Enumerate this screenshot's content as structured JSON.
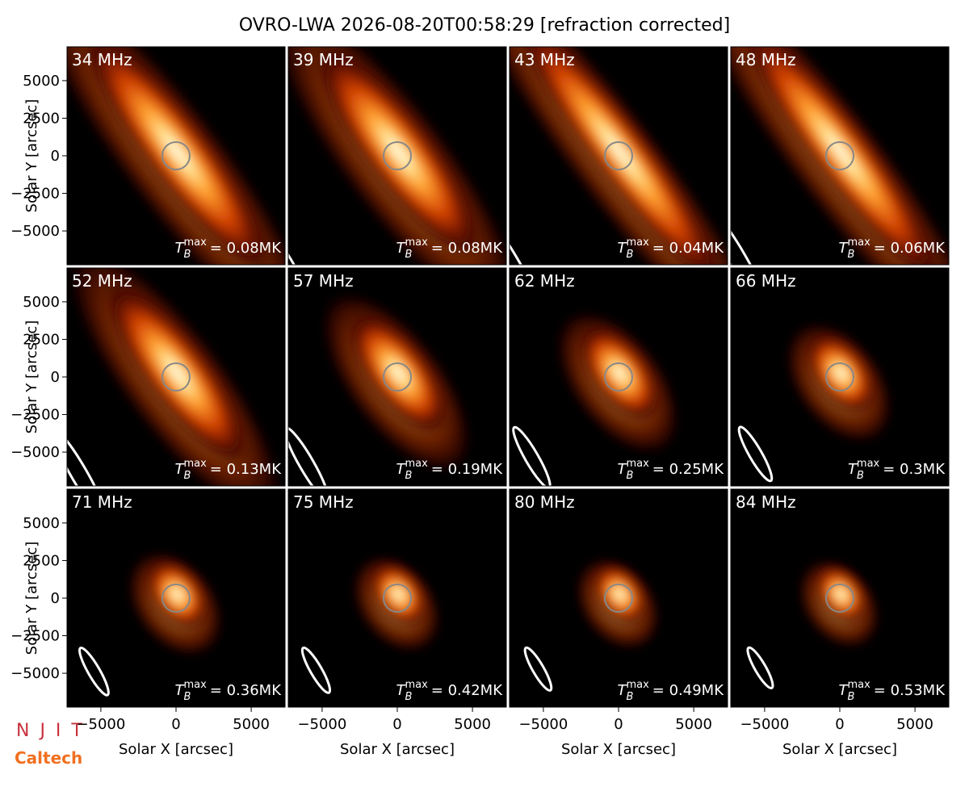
{
  "title": "OVRO-LWA 2026-08-20T00:58:29 [refraction corrected]",
  "logos": {
    "njit": "N J I T",
    "caltech": "Caltech"
  },
  "chart_data": [
    {
      "type": "image",
      "title": "34 MHz",
      "annotation": {
        "symbol": "T",
        "sub": "B",
        "sup": "max",
        "text": "= 0.08MK"
      },
      "xlim": [
        -7250,
        7250
      ],
      "ylim": [
        -7250,
        7250
      ],
      "ylabel": "Solar Y [arcsec]",
      "yticks": [
        {
          "value": -5000,
          "label": "−5000"
        },
        {
          "value": -2500,
          "label": "−2500"
        },
        0,
        2500,
        5000
      ]
    },
    {
      "type": "image",
      "title": "39 MHz",
      "annotation": {
        "symbol": "T",
        "sub": "B",
        "sup": "max",
        "text": "= 0.08MK"
      },
      "xlim": [
        -7250,
        7250
      ],
      "ylim": [
        -7250,
        7250
      ]
    },
    {
      "type": "image",
      "title": "43 MHz",
      "annotation": {
        "symbol": "T",
        "sub": "B",
        "sup": "max",
        "text": "= 0.04MK"
      },
      "xlim": [
        -7250,
        7250
      ],
      "ylim": [
        -7250,
        7250
      ]
    },
    {
      "type": "image",
      "title": "48 MHz",
      "annotation": {
        "symbol": "T",
        "sub": "B",
        "sup": "max",
        "text": "= 0.06MK"
      },
      "xlim": [
        -7250,
        7250
      ],
      "ylim": [
        -7250,
        7250
      ]
    },
    {
      "type": "image",
      "title": "52 MHz",
      "annotation": {
        "symbol": "T",
        "sub": "B",
        "sup": "max",
        "text": "= 0.13MK"
      },
      "xlim": [
        -7250,
        7250
      ],
      "ylim": [
        -7250,
        7250
      ],
      "ylabel": "Solar Y [arcsec]",
      "yticks": [
        {
          "value": -5000,
          "label": "−5000"
        },
        {
          "value": -2500,
          "label": "−2500"
        },
        0,
        2500,
        5000
      ]
    },
    {
      "type": "image",
      "title": "57 MHz",
      "annotation": {
        "symbol": "T",
        "sub": "B",
        "sup": "max",
        "text": "= 0.19MK"
      },
      "xlim": [
        -7250,
        7250
      ],
      "ylim": [
        -7250,
        7250
      ]
    },
    {
      "type": "image",
      "title": "62 MHz",
      "annotation": {
        "symbol": "T",
        "sub": "B",
        "sup": "max",
        "text": "= 0.25MK"
      },
      "xlim": [
        -7250,
        7250
      ],
      "ylim": [
        -7250,
        7250
      ]
    },
    {
      "type": "image",
      "title": "66 MHz",
      "annotation": {
        "symbol": "T",
        "sub": "B",
        "sup": "max",
        "text": "= 0.3MK"
      },
      "xlim": [
        -7250,
        7250
      ],
      "ylim": [
        -7250,
        7250
      ]
    },
    {
      "type": "image",
      "title": "71 MHz",
      "annotation": {
        "symbol": "T",
        "sub": "B",
        "sup": "max",
        "text": "= 0.36MK"
      },
      "xlim": [
        -7250,
        7250
      ],
      "ylim": [
        -7250,
        7250
      ],
      "ylabel": "Solar Y [arcsec]",
      "yticks": [
        {
          "value": -5000,
          "label": "−5000"
        },
        {
          "value": -2500,
          "label": "−2500"
        },
        0,
        2500,
        5000
      ],
      "xlabel": "Solar X [arcsec]",
      "xticks": [
        {
          "value": -5000,
          "label": "−5000"
        },
        0,
        5000
      ]
    },
    {
      "type": "image",
      "title": "75 MHz",
      "annotation": {
        "symbol": "T",
        "sub": "B",
        "sup": "max",
        "text": "= 0.42MK"
      },
      "xlim": [
        -7250,
        7250
      ],
      "ylim": [
        -7250,
        7250
      ],
      "xlabel": "Solar X [arcsec]",
      "xticks": [
        {
          "value": -5000,
          "label": "−5000"
        },
        0,
        5000
      ]
    },
    {
      "type": "image",
      "title": "80 MHz",
      "annotation": {
        "symbol": "T",
        "sub": "B",
        "sup": "max",
        "text": "= 0.49MK"
      },
      "xlim": [
        -7250,
        7250
      ],
      "ylim": [
        -7250,
        7250
      ],
      "xlabel": "Solar X [arcsec]",
      "xticks": [
        {
          "value": -5000,
          "label": "−5000"
        },
        0,
        5000
      ]
    },
    {
      "type": "image",
      "title": "84 MHz",
      "annotation": {
        "symbol": "T",
        "sub": "B",
        "sup": "max",
        "text": "= 0.53MK"
      },
      "xlim": [
        -7250,
        7250
      ],
      "ylim": [
        -7250,
        7250
      ],
      "xlabel": "Solar X [arcsec]",
      "xticks": [
        {
          "value": -5000,
          "label": "−5000"
        },
        0,
        5000
      ]
    }
  ]
}
